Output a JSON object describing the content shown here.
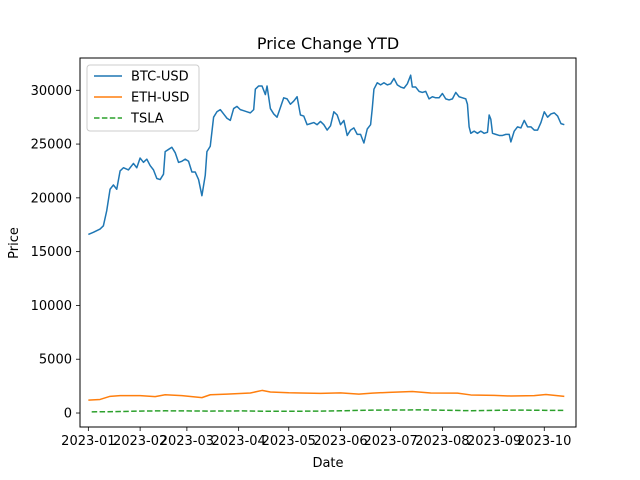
{
  "chart_data": {
    "type": "line",
    "title": "Price Change YTD",
    "xlabel": "Date",
    "ylabel": "Price",
    "xlim": [
      "2022-12-27",
      "2023-10-20"
    ],
    "ylim": [
      -1300,
      33000
    ],
    "x_ticks": [
      "2023-01",
      "2023-02",
      "2023-03",
      "2023-04",
      "2023-05",
      "2023-06",
      "2023-07",
      "2023-08",
      "2023-09",
      "2023-10"
    ],
    "x_tick_dates": [
      "2023-01-01",
      "2023-02-01",
      "2023-03-01",
      "2023-04-01",
      "2023-05-01",
      "2023-06-01",
      "2023-07-01",
      "2023-08-01",
      "2023-09-01",
      "2023-10-01"
    ],
    "y_ticks": [
      0,
      5000,
      10000,
      15000,
      20000,
      25000,
      30000
    ],
    "grid": false,
    "legend_position": "top-left",
    "series": [
      {
        "name": "BTC-USD",
        "color": "#1f77b4",
        "style": "solid",
        "points": [
          [
            "2023-01-01",
            16600
          ],
          [
            "2023-01-04",
            16800
          ],
          [
            "2023-01-08",
            17100
          ],
          [
            "2023-01-10",
            17400
          ],
          [
            "2023-01-12",
            18800
          ],
          [
            "2023-01-14",
            20800
          ],
          [
            "2023-01-16",
            21200
          ],
          [
            "2023-01-18",
            20800
          ],
          [
            "2023-01-20",
            22500
          ],
          [
            "2023-01-22",
            22800
          ],
          [
            "2023-01-25",
            22600
          ],
          [
            "2023-01-28",
            23200
          ],
          [
            "2023-01-30",
            22800
          ],
          [
            "2023-02-01",
            23700
          ],
          [
            "2023-02-03",
            23300
          ],
          [
            "2023-02-05",
            23600
          ],
          [
            "2023-02-07",
            23000
          ],
          [
            "2023-02-09",
            22600
          ],
          [
            "2023-02-11",
            21800
          ],
          [
            "2023-02-13",
            21700
          ],
          [
            "2023-02-15",
            22200
          ],
          [
            "2023-02-16",
            24300
          ],
          [
            "2023-02-18",
            24500
          ],
          [
            "2023-02-20",
            24700
          ],
          [
            "2023-02-22",
            24200
          ],
          [
            "2023-02-24",
            23300
          ],
          [
            "2023-02-26",
            23400
          ],
          [
            "2023-02-28",
            23600
          ],
          [
            "2023-03-02",
            23400
          ],
          [
            "2023-03-04",
            22400
          ],
          [
            "2023-03-06",
            22400
          ],
          [
            "2023-03-08",
            21700
          ],
          [
            "2023-03-10",
            20200
          ],
          [
            "2023-03-12",
            22100
          ],
          [
            "2023-03-13",
            24300
          ],
          [
            "2023-03-15",
            24800
          ],
          [
            "2023-03-17",
            27500
          ],
          [
            "2023-03-19",
            28000
          ],
          [
            "2023-03-21",
            28200
          ],
          [
            "2023-03-23",
            27800
          ],
          [
            "2023-03-25",
            27400
          ],
          [
            "2023-03-27",
            27200
          ],
          [
            "2023-03-29",
            28300
          ],
          [
            "2023-03-31",
            28500
          ],
          [
            "2023-04-02",
            28200
          ],
          [
            "2023-04-04",
            28100
          ],
          [
            "2023-04-06",
            28000
          ],
          [
            "2023-04-08",
            27900
          ],
          [
            "2023-04-10",
            28200
          ],
          [
            "2023-04-11",
            30100
          ],
          [
            "2023-04-13",
            30400
          ],
          [
            "2023-04-15",
            30400
          ],
          [
            "2023-04-17",
            29600
          ],
          [
            "2023-04-18",
            30400
          ],
          [
            "2023-04-20",
            28300
          ],
          [
            "2023-04-22",
            27800
          ],
          [
            "2023-04-24",
            27500
          ],
          [
            "2023-04-26",
            28400
          ],
          [
            "2023-04-28",
            29300
          ],
          [
            "2023-04-30",
            29200
          ],
          [
            "2023-05-02",
            28700
          ],
          [
            "2023-05-04",
            29000
          ],
          [
            "2023-05-06",
            29400
          ],
          [
            "2023-05-08",
            27700
          ],
          [
            "2023-05-10",
            27600
          ],
          [
            "2023-05-12",
            26800
          ],
          [
            "2023-05-14",
            26900
          ],
          [
            "2023-05-16",
            27000
          ],
          [
            "2023-05-18",
            26800
          ],
          [
            "2023-05-20",
            27100
          ],
          [
            "2023-05-22",
            26800
          ],
          [
            "2023-05-24",
            26300
          ],
          [
            "2023-05-26",
            26700
          ],
          [
            "2023-05-28",
            28000
          ],
          [
            "2023-05-30",
            27700
          ],
          [
            "2023-06-01",
            26800
          ],
          [
            "2023-06-03",
            27200
          ],
          [
            "2023-06-05",
            25800
          ],
          [
            "2023-06-07",
            26300
          ],
          [
            "2023-06-09",
            26500
          ],
          [
            "2023-06-11",
            25900
          ],
          [
            "2023-06-13",
            25900
          ],
          [
            "2023-06-15",
            25100
          ],
          [
            "2023-06-17",
            26400
          ],
          [
            "2023-06-19",
            26800
          ],
          [
            "2023-06-20",
            28300
          ],
          [
            "2023-06-21",
            30100
          ],
          [
            "2023-06-23",
            30700
          ],
          [
            "2023-06-25",
            30500
          ],
          [
            "2023-06-27",
            30700
          ],
          [
            "2023-06-29",
            30500
          ],
          [
            "2023-07-01",
            30600
          ],
          [
            "2023-07-03",
            31100
          ],
          [
            "2023-07-05",
            30500
          ],
          [
            "2023-07-07",
            30300
          ],
          [
            "2023-07-09",
            30200
          ],
          [
            "2023-07-11",
            30600
          ],
          [
            "2023-07-13",
            31400
          ],
          [
            "2023-07-14",
            30300
          ],
          [
            "2023-07-16",
            30300
          ],
          [
            "2023-07-18",
            29900
          ],
          [
            "2023-07-20",
            29800
          ],
          [
            "2023-07-22",
            29900
          ],
          [
            "2023-07-24",
            29200
          ],
          [
            "2023-07-26",
            29400
          ],
          [
            "2023-07-28",
            29300
          ],
          [
            "2023-07-30",
            29300
          ],
          [
            "2023-08-01",
            29700
          ],
          [
            "2023-08-03",
            29200
          ],
          [
            "2023-08-05",
            29100
          ],
          [
            "2023-08-07",
            29200
          ],
          [
            "2023-08-09",
            29800
          ],
          [
            "2023-08-11",
            29400
          ],
          [
            "2023-08-13",
            29300
          ],
          [
            "2023-08-15",
            29200
          ],
          [
            "2023-08-16",
            28700
          ],
          [
            "2023-08-17",
            26600
          ],
          [
            "2023-08-18",
            26000
          ],
          [
            "2023-08-20",
            26200
          ],
          [
            "2023-08-22",
            26000
          ],
          [
            "2023-08-24",
            26200
          ],
          [
            "2023-08-26",
            26000
          ],
          [
            "2023-08-28",
            26100
          ],
          [
            "2023-08-29",
            27700
          ],
          [
            "2023-08-30",
            27300
          ],
          [
            "2023-08-31",
            26000
          ],
          [
            "2023-09-02",
            25900
          ],
          [
            "2023-09-04",
            25800
          ],
          [
            "2023-09-06",
            25800
          ],
          [
            "2023-09-08",
            25900
          ],
          [
            "2023-09-10",
            25900
          ],
          [
            "2023-09-11",
            25200
          ],
          [
            "2023-09-13",
            26200
          ],
          [
            "2023-09-15",
            26600
          ],
          [
            "2023-09-17",
            26500
          ],
          [
            "2023-09-19",
            27200
          ],
          [
            "2023-09-21",
            26600
          ],
          [
            "2023-09-23",
            26600
          ],
          [
            "2023-09-25",
            26300
          ],
          [
            "2023-09-27",
            26300
          ],
          [
            "2023-09-29",
            27000
          ],
          [
            "2023-10-01",
            28000
          ],
          [
            "2023-10-03",
            27500
          ],
          [
            "2023-10-05",
            27800
          ],
          [
            "2023-10-07",
            27900
          ],
          [
            "2023-10-09",
            27600
          ],
          [
            "2023-10-11",
            26900
          ],
          [
            "2023-10-13",
            26800
          ]
        ]
      },
      {
        "name": "ETH-USD",
        "color": "#ff7f0e",
        "style": "solid",
        "points": [
          [
            "2023-01-01",
            1200
          ],
          [
            "2023-01-08",
            1260
          ],
          [
            "2023-01-14",
            1550
          ],
          [
            "2023-01-20",
            1620
          ],
          [
            "2023-02-01",
            1620
          ],
          [
            "2023-02-10",
            1520
          ],
          [
            "2023-02-16",
            1700
          ],
          [
            "2023-02-26",
            1620
          ],
          [
            "2023-03-10",
            1430
          ],
          [
            "2023-03-15",
            1700
          ],
          [
            "2023-03-25",
            1760
          ],
          [
            "2023-04-08",
            1860
          ],
          [
            "2023-04-15",
            2100
          ],
          [
            "2023-04-20",
            1950
          ],
          [
            "2023-05-01",
            1880
          ],
          [
            "2023-05-08",
            1860
          ],
          [
            "2023-05-20",
            1820
          ],
          [
            "2023-06-01",
            1870
          ],
          [
            "2023-06-12",
            1760
          ],
          [
            "2023-06-20",
            1850
          ],
          [
            "2023-06-30",
            1920
          ],
          [
            "2023-07-14",
            2000
          ],
          [
            "2023-07-25",
            1860
          ],
          [
            "2023-08-10",
            1850
          ],
          [
            "2023-08-18",
            1680
          ],
          [
            "2023-09-01",
            1640
          ],
          [
            "2023-09-11",
            1580
          ],
          [
            "2023-09-25",
            1620
          ],
          [
            "2023-10-02",
            1720
          ],
          [
            "2023-10-13",
            1550
          ]
        ]
      },
      {
        "name": "TSLA",
        "color": "#2ca02c",
        "style": "dashed",
        "points": [
          [
            "2023-01-03",
            108
          ],
          [
            "2023-01-20",
            135
          ],
          [
            "2023-02-01",
            180
          ],
          [
            "2023-02-16",
            205
          ],
          [
            "2023-03-01",
            195
          ],
          [
            "2023-03-15",
            180
          ],
          [
            "2023-04-03",
            195
          ],
          [
            "2023-04-20",
            160
          ],
          [
            "2023-05-01",
            160
          ],
          [
            "2023-05-20",
            180
          ],
          [
            "2023-06-01",
            205
          ],
          [
            "2023-06-20",
            270
          ],
          [
            "2023-07-03",
            280
          ],
          [
            "2023-07-19",
            290
          ],
          [
            "2023-08-01",
            260
          ],
          [
            "2023-08-18",
            215
          ],
          [
            "2023-09-01",
            245
          ],
          [
            "2023-09-15",
            275
          ],
          [
            "2023-10-02",
            250
          ],
          [
            "2023-10-13",
            250
          ]
        ]
      }
    ]
  }
}
